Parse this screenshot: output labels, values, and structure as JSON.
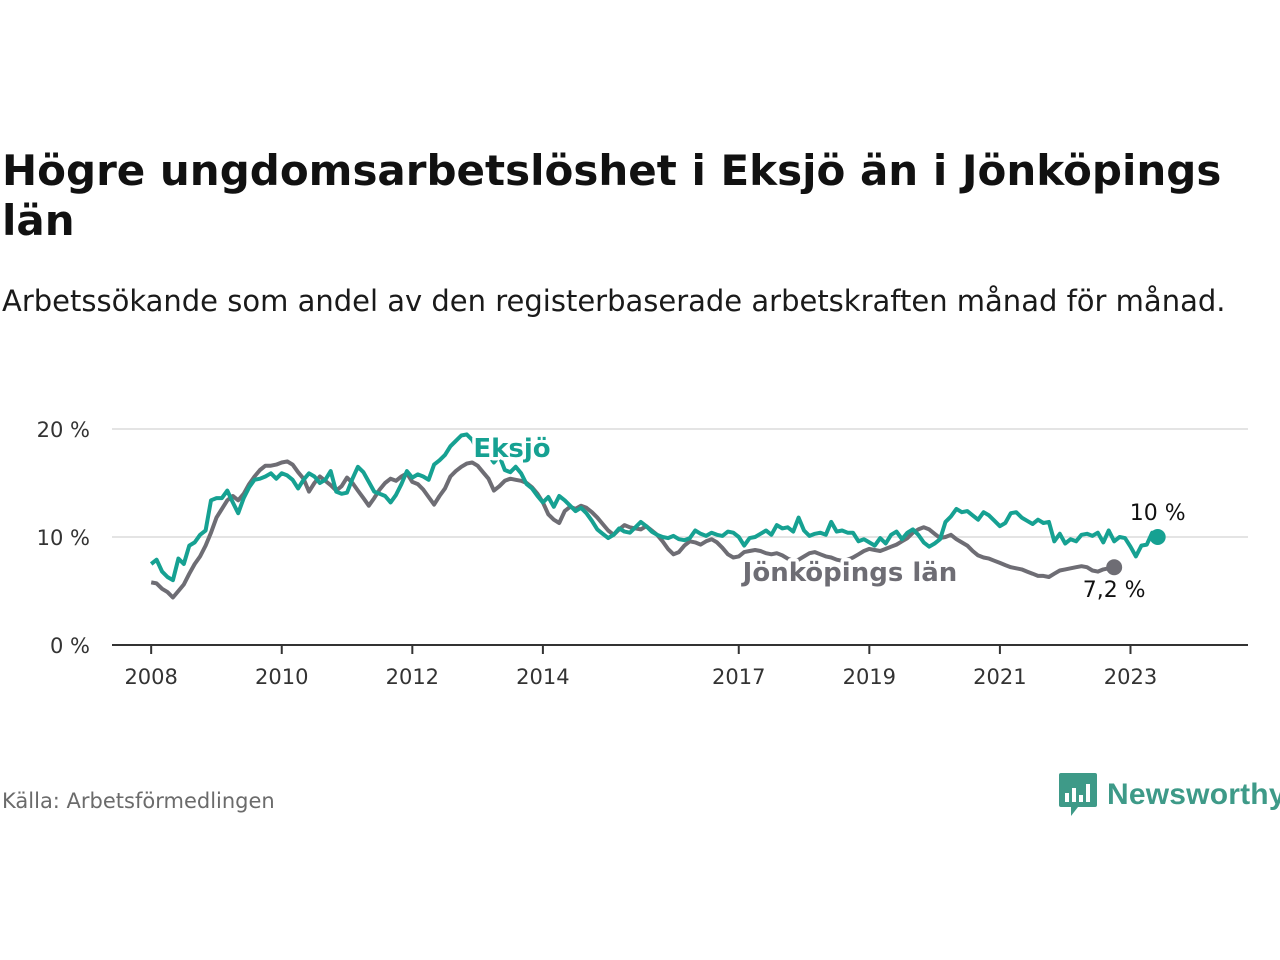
{
  "title": "Högre ungdomsarbetslöshet i Eksjö än i Jönköpings län",
  "subtitle": "Arbetssökande som andel av den registerbaserade arbetskraften månad för månad.",
  "source": "Källa: Arbetsförmedlingen",
  "brand": {
    "name": "Newsworthy",
    "icon": "newsworthy-logo-icon",
    "color": "#3e9a88"
  },
  "chart_data": {
    "type": "line",
    "title": "Högre ungdomsarbetslöshet i Eksjö än i Jönköpings län",
    "ylabel": "",
    "xlabel": "",
    "ylim": [
      0,
      20
    ],
    "xlim": [
      2007.4,
      2024.8
    ],
    "y_ticks": [
      {
        "value": 0,
        "label": "0 %"
      },
      {
        "value": 10,
        "label": "10 %"
      },
      {
        "value": 20,
        "label": "20 %"
      }
    ],
    "x_ticks": [
      {
        "value": 2008,
        "label": "2008"
      },
      {
        "value": 2010,
        "label": "2010"
      },
      {
        "value": 2012,
        "label": "2012"
      },
      {
        "value": 2014,
        "label": "2014"
      },
      {
        "value": 2017,
        "label": "2017"
      },
      {
        "value": 2019,
        "label": "2019"
      },
      {
        "value": 2021,
        "label": "2021"
      },
      {
        "value": 2023,
        "label": "2023"
      }
    ],
    "grid": true,
    "series": [
      {
        "name": "Jönköpings län",
        "label": "Jönköpings län",
        "color": "#6e6d74",
        "end_label": "7,2 %",
        "start": 2008.0,
        "step": 0.0833333,
        "values": [
          5.8,
          5.7,
          5.2,
          4.9,
          4.4,
          5.0,
          5.6,
          6.6,
          7.5,
          8.2,
          9.2,
          10.4,
          11.8,
          12.6,
          13.4,
          13.8,
          13.4,
          14.0,
          14.9,
          15.6,
          16.2,
          16.6,
          16.6,
          16.7,
          16.9,
          17.0,
          16.7,
          16.0,
          15.4,
          14.2,
          15.0,
          15.6,
          15.2,
          14.8,
          14.3,
          14.7,
          15.5,
          15.0,
          14.3,
          13.6,
          12.9,
          13.6,
          14.4,
          15.0,
          15.4,
          15.2,
          15.6,
          15.9,
          15.1,
          14.9,
          14.4,
          13.7,
          13.0,
          13.8,
          14.5,
          15.6,
          16.1,
          16.5,
          16.8,
          16.9,
          16.6,
          16.0,
          15.4,
          14.3,
          14.7,
          15.2,
          15.4,
          15.3,
          15.2,
          15.0,
          14.6,
          14.0,
          13.2,
          12.1,
          11.6,
          11.3,
          12.4,
          12.8,
          12.6,
          12.9,
          12.7,
          12.3,
          11.8,
          11.2,
          10.6,
          10.2,
          10.7,
          11.1,
          10.9,
          10.8,
          10.7,
          11.0,
          10.6,
          10.2,
          9.6,
          8.9,
          8.4,
          8.6,
          9.2,
          9.6,
          9.5,
          9.3,
          9.6,
          9.8,
          9.5,
          9.0,
          8.4,
          8.1,
          8.2,
          8.6,
          8.7,
          8.8,
          8.7,
          8.5,
          8.4,
          8.5,
          8.3,
          8.0,
          7.8,
          7.9,
          8.2,
          8.5,
          8.6,
          8.4,
          8.2,
          8.1,
          7.9,
          7.8,
          7.9,
          8.1,
          8.4,
          8.7,
          8.9,
          8.8,
          8.7,
          8.9,
          9.1,
          9.3,
          9.6,
          9.9,
          10.4,
          10.7,
          10.9,
          10.7,
          10.3,
          9.9,
          10.0,
          10.2,
          9.8,
          9.5,
          9.2,
          8.7,
          8.3,
          8.1,
          8.0,
          7.8,
          7.6,
          7.4,
          7.2,
          7.1,
          7.0,
          6.8,
          6.6,
          6.4,
          6.4,
          6.3,
          6.6,
          6.9,
          7.0,
          7.1,
          7.2,
          7.3,
          7.2,
          6.9,
          6.8,
          7.0,
          7.1,
          7.2
        ]
      },
      {
        "name": "Eksjö",
        "label": "Eksjö",
        "color": "#16a192",
        "end_label": "10 %",
        "start": 2008.0,
        "step": 0.0833333,
        "values": [
          7.5,
          7.9,
          6.8,
          6.3,
          6.0,
          8.0,
          7.5,
          9.2,
          9.5,
          10.2,
          10.6,
          13.4,
          13.6,
          13.6,
          14.3,
          13.2,
          12.2,
          13.6,
          14.6,
          15.3,
          15.4,
          15.6,
          15.9,
          15.4,
          15.9,
          15.7,
          15.3,
          14.5,
          15.3,
          15.9,
          15.6,
          15.0,
          15.3,
          16.1,
          14.2,
          14.0,
          14.1,
          15.4,
          16.5,
          16.0,
          15.1,
          14.2,
          14.0,
          13.8,
          13.2,
          13.9,
          14.9,
          16.1,
          15.5,
          15.8,
          15.6,
          15.3,
          16.7,
          17.1,
          17.6,
          18.4,
          18.9,
          19.4,
          19.5,
          19.0,
          18.0,
          18.2,
          17.6,
          16.9,
          17.5,
          16.2,
          16.0,
          16.5,
          15.9,
          14.9,
          14.5,
          13.8,
          13.2,
          13.7,
          12.8,
          13.8,
          13.4,
          12.9,
          12.4,
          12.7,
          12.2,
          11.5,
          10.7,
          10.3,
          9.9,
          10.2,
          10.8,
          10.5,
          10.4,
          10.9,
          11.4,
          11.0,
          10.5,
          10.2,
          10.0,
          9.9,
          10.1,
          9.8,
          9.7,
          9.9,
          10.6,
          10.3,
          10.1,
          10.4,
          10.2,
          10.1,
          10.5,
          10.4,
          10.0,
          9.2,
          9.9,
          10.0,
          10.3,
          10.6,
          10.2,
          11.1,
          10.8,
          10.9,
          10.5,
          11.8,
          10.6,
          10.1,
          10.3,
          10.4,
          10.2,
          11.4,
          10.5,
          10.6,
          10.4,
          10.4,
          9.6,
          9.8,
          9.5,
          9.2,
          9.9,
          9.4,
          10.2,
          10.5,
          9.8,
          10.4,
          10.7,
          10.2,
          9.5,
          9.1,
          9.4,
          9.8,
          11.4,
          11.9,
          12.6,
          12.3,
          12.4,
          12.0,
          11.6,
          12.3,
          12.0,
          11.5,
          11.0,
          11.3,
          12.2,
          12.3,
          11.8,
          11.5,
          11.2,
          11.6,
          11.3,
          11.4,
          9.6,
          10.3,
          9.4,
          9.8,
          9.6,
          10.2,
          10.3,
          10.1,
          10.4,
          9.5,
          10.6,
          9.6,
          10.0,
          9.9,
          9.1,
          8.2,
          9.2,
          9.3,
          10.4,
          10.0
        ]
      }
    ],
    "annotations": [
      {
        "text": "Eksjö",
        "series": "Eksjö"
      },
      {
        "text": "Jönköpings län",
        "series": "Jönköpings län"
      }
    ]
  }
}
